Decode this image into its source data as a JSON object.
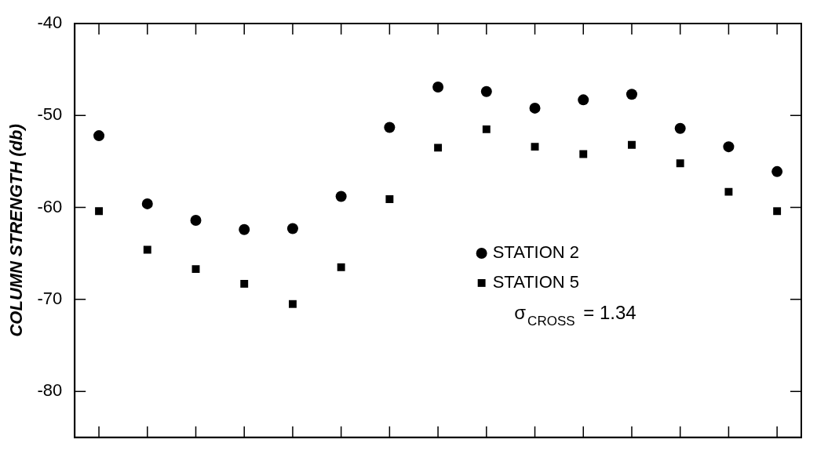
{
  "chart_data": {
    "type": "scatter",
    "ylabel": "COLUMN STRENGTH (db)",
    "categories": [
      null,
      null,
      null,
      null,
      null,
      null,
      null,
      null,
      null,
      null,
      null,
      null,
      null,
      null,
      null
    ],
    "series": [
      {
        "name": "STATION 2",
        "color": "#000000",
        "marker": "circle",
        "values": [
          -52.2,
          -59.6,
          -61.4,
          -62.4,
          -62.3,
          -58.8,
          -51.3,
          -46.9,
          -47.4,
          -49.2,
          -48.3,
          -47.7,
          -51.4,
          -53.4,
          -56.1
        ]
      },
      {
        "name": "STATION 5",
        "color": "#000000",
        "marker": "square",
        "values": [
          -60.4,
          -64.6,
          -66.7,
          -68.3,
          -70.5,
          -66.5,
          -59.1,
          -53.5,
          -51.5,
          -53.4,
          -54.2,
          -53.2,
          -55.2,
          -58.3,
          -60.4
        ]
      }
    ],
    "ylim": [
      -85,
      -40
    ],
    "yticks": [
      -40,
      -50,
      -60,
      -70,
      -80
    ],
    "grid": false,
    "legend": "right",
    "annotations": [
      "σ$_{CROSS}$ = 1.34"
    ]
  }
}
